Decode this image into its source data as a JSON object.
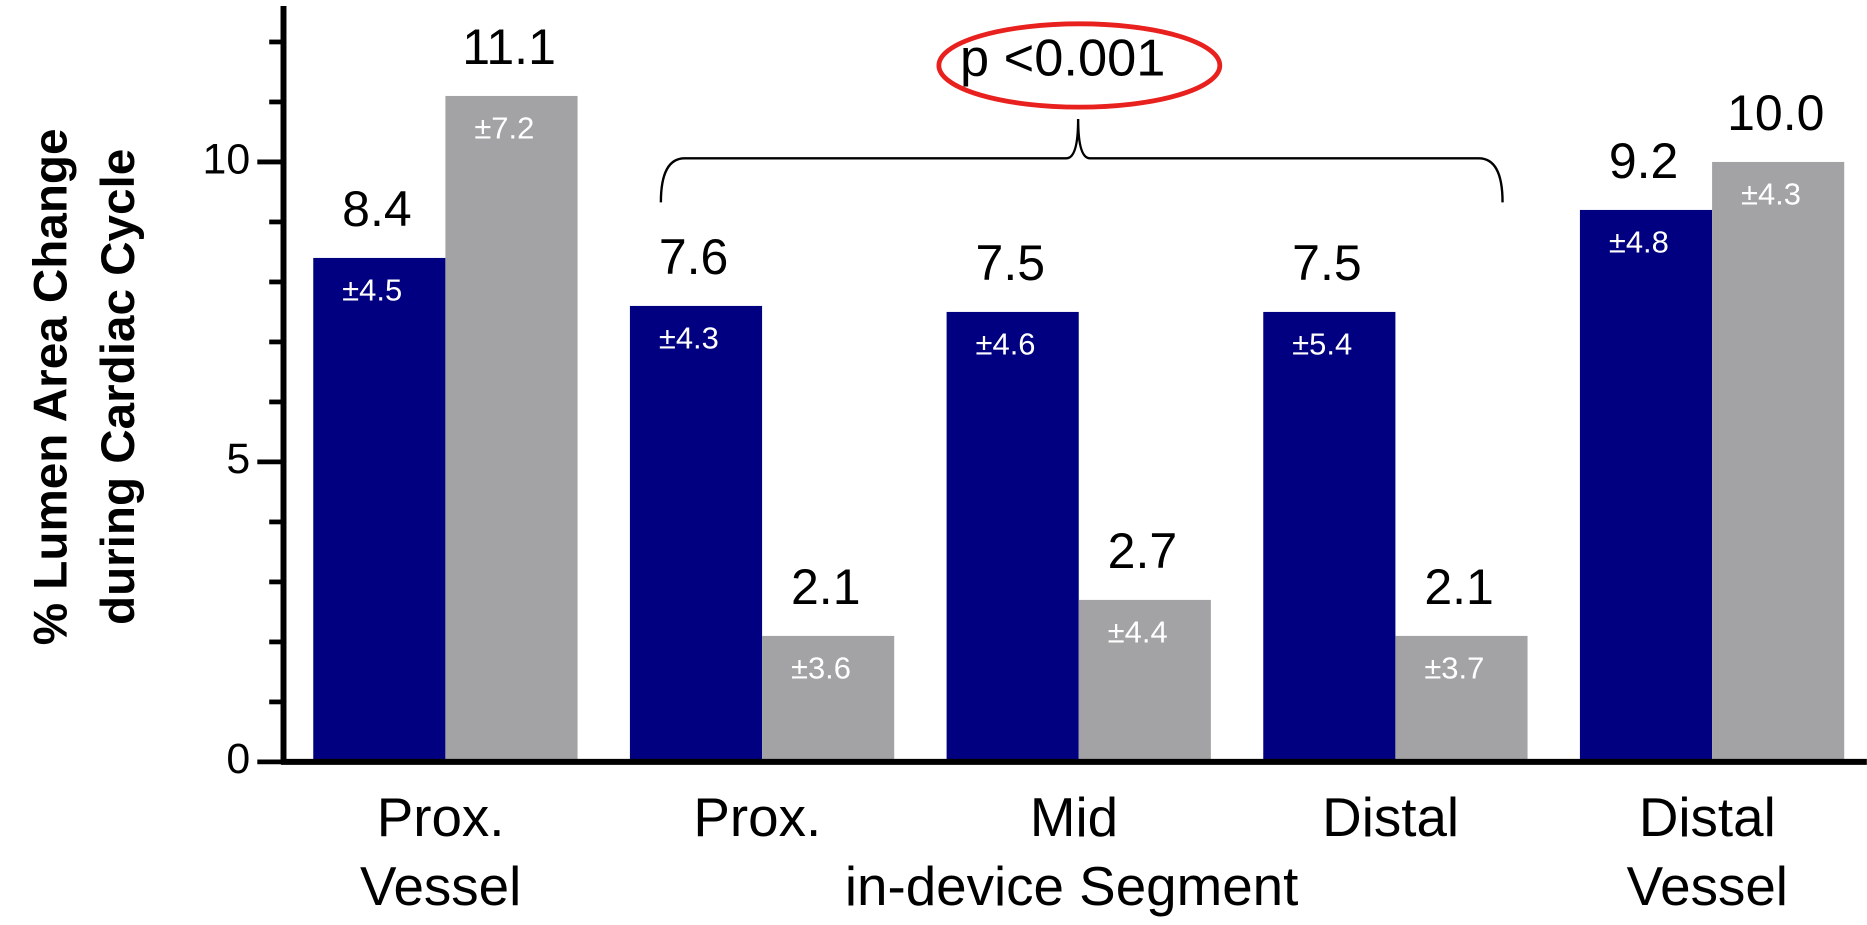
{
  "chart_data": {
    "type": "bar",
    "y_label": [
      "% Lumen Area Change",
      "during Cardiac Cycle"
    ],
    "categories": [
      [
        "Prox.",
        "Vessel"
      ],
      [
        "Prox."
      ],
      [
        "Mid"
      ],
      [
        "Distal"
      ],
      [
        "Distal",
        "Vessel"
      ]
    ],
    "group_label": {
      "text": "in-device Segment",
      "from": 1,
      "to": 3
    },
    "annotation": {
      "text": "p <0.001",
      "from": 1,
      "to": 3,
      "ring_color": "#e8201e"
    },
    "series": [
      {
        "color": "#000080",
        "values": [
          8.4,
          7.6,
          7.5,
          7.5,
          9.2
        ],
        "value_labels": [
          "8.4",
          "7.6",
          "7.5",
          "7.5",
          "9.2"
        ],
        "errors": [
          4.5,
          4.3,
          4.6,
          5.4,
          4.8
        ],
        "error_labels": [
          "±4.5",
          "±4.3",
          "±4.6",
          "±5.4",
          "±4.8"
        ]
      },
      {
        "color": "#a3a3a6",
        "values": [
          11.1,
          2.1,
          2.7,
          2.1,
          10.0
        ],
        "value_labels": [
          "11.1",
          "2.1",
          "2.7",
          "2.1",
          "10.0"
        ],
        "errors": [
          7.2,
          3.6,
          4.4,
          3.7,
          4.3
        ],
        "error_labels": [
          "±7.2",
          "±3.6",
          "±4.4",
          "±3.7",
          "±4.3"
        ]
      }
    ],
    "ylim": [
      0,
      12.6
    ],
    "yticks": [
      0,
      5,
      10
    ],
    "yminorticks": [
      1,
      2,
      3,
      4,
      6,
      7,
      8,
      9,
      11,
      12
    ],
    "grid": false
  }
}
